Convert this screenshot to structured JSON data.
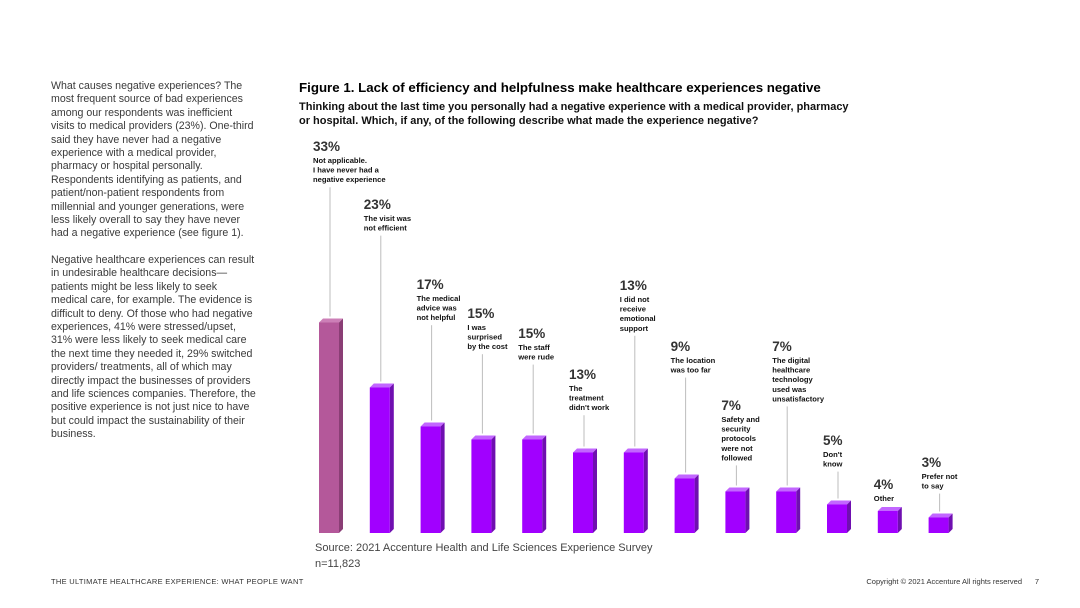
{
  "sidebar": {
    "para1": "What causes negative experiences? The most frequent source of bad experiences among our respondents was inefficient visits to medical providers (23%). One-third said they have never had a negative experience with a medical provider, pharmacy or hospital personally. Respondents identifying as patients, and patient/non-patient respondents from millennial and younger generations, were less likely overall to say they have never had a negative experience (see figure 1).",
    "para2": "Negative healthcare experiences can result in undesirable healthcare decisions—patients might be less likely to seek medical care, for example. The evidence is difficult to deny. Of those who had negative experiences, 41% were stressed/upset, 31% were less likely to seek medical care the next time they needed it, 29% switched providers/ treatments, all of which may directly impact the businesses of providers and life sciences companies. Therefore, the positive experience is not just nice to have but could impact the sustainability of their business."
  },
  "figure": {
    "title": "Figure 1. Lack of efficiency and helpfulness make healthcare experiences negative",
    "subtitle": "Thinking about the last time you personally had a negative experience with a medical provider, pharmacy or hospital. Which, if any, of the following describe what made the experience negative?"
  },
  "chart_data": {
    "type": "bar",
    "categories": [
      "Not applicable. I have never had a negative experience",
      "The visit was not efficient",
      "The medical advice was not helpful",
      "I was surprised by the cost",
      "The staff were rude",
      "The treatment didn't work",
      "I did not receive emotional support",
      "The location was too far",
      "Safety and security protocols were not followed",
      "The digital healthcare technology used was unsatisfactory",
      "Don't know",
      "Other",
      "Prefer not to say"
    ],
    "values": [
      33,
      23,
      17,
      15,
      15,
      13,
      13,
      9,
      7,
      7,
      5,
      4,
      3
    ],
    "value_labels": [
      "33%",
      "23%",
      "17%",
      "15%",
      "15%",
      "13%",
      "13%",
      "9%",
      "7%",
      "7%",
      "5%",
      "4%",
      "3%"
    ],
    "label_lines": [
      [
        "Not applicable.",
        "I have never had a",
        "negative experience"
      ],
      [
        "The visit was",
        "not efficient"
      ],
      [
        "The medical",
        "advice was",
        "not helpful"
      ],
      [
        "I was",
        "surprised",
        "by the cost"
      ],
      [
        "The staff",
        "were rude"
      ],
      [
        "The",
        "treatment",
        "didn't work"
      ],
      [
        "I did not",
        "receive",
        "emotional",
        "support"
      ],
      [
        "The location",
        "was too far"
      ],
      [
        "Safety and",
        "security",
        "protocols",
        "were not",
        "followed"
      ],
      [
        "The digital",
        "healthcare",
        "technology",
        "used was",
        "unsatisfactory"
      ],
      [
        "Don't",
        "know"
      ],
      [
        "Other"
      ],
      [
        "Prefer not",
        "to say"
      ]
    ],
    "colors": {
      "first_bar": "#b4589a",
      "bar": "#a100ff",
      "bar_side": "#6f0fb0",
      "bar_top": "#c266ff",
      "first_side": "#8a3e75",
      "first_top": "#cc7fb7",
      "leader": "#bdbdbd"
    }
  },
  "source": "Source: 2021 Accenture Health and Life Sciences Experience Survey",
  "sample": "n=11,823",
  "footer": {
    "left": "THE ULTIMATE HEALTHCARE EXPERIENCE: WHAT PEOPLE WANT",
    "right": "Copyright © 2021 Accenture All rights reserved",
    "page": "7"
  }
}
